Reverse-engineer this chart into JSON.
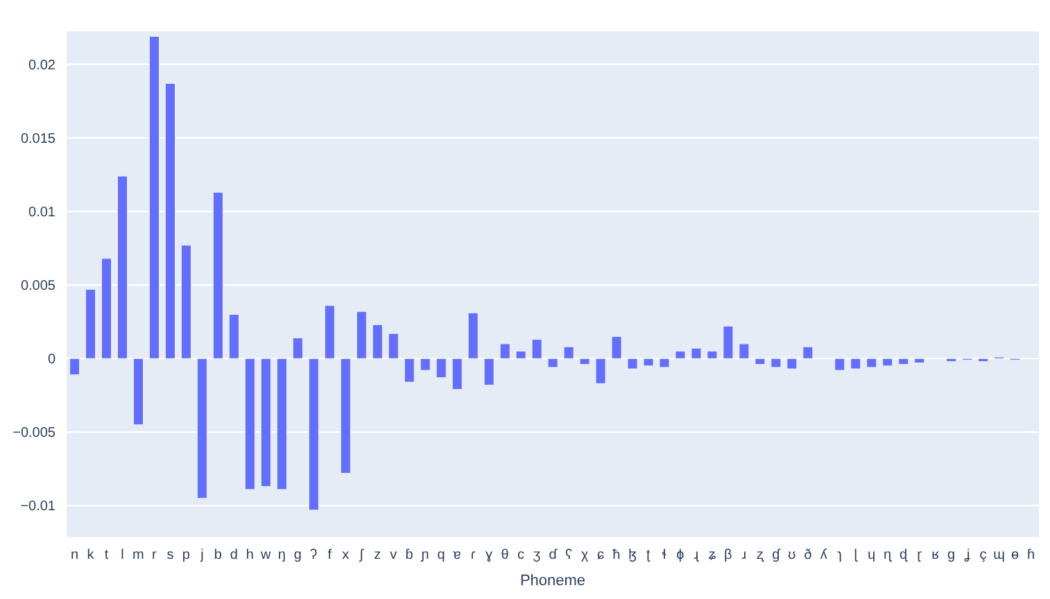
{
  "chart_data": {
    "type": "bar",
    "xlabel": "Phoneme",
    "categories": [
      "n",
      "k",
      "t",
      "l",
      "m",
      "r",
      "s",
      "p",
      "j",
      "b",
      "d",
      "h",
      "w",
      "ŋ",
      "g",
      "ʔ",
      "f",
      "x",
      "ʃ",
      "z",
      "v",
      "ɓ",
      "ɲ",
      "q",
      "ɐ",
      "ɾ",
      "ɣ",
      "θ",
      "c",
      "ʒ",
      "ɗ",
      "ʕ",
      "χ",
      "ɕ",
      "ħ",
      "ɮ",
      "ʈ",
      "ɬ",
      "ɸ",
      "ɻ",
      "ʑ",
      "β",
      "ɹ",
      "ʐ",
      "ɠ",
      "ʊ",
      "ð",
      "ʎ",
      "ɿ",
      "ɭ",
      "ɥ",
      "ɳ",
      "ɖ",
      "ɽ",
      "ʁ",
      "ɡ",
      "ʝ",
      "ç",
      "ɰ",
      "ɵ",
      "ɦ"
    ],
    "values": [
      -0.0011,
      0.0047,
      0.0068,
      0.0124,
      -0.0045,
      0.0219,
      0.0187,
      0.0077,
      -0.0095,
      0.0113,
      0.003,
      -0.0089,
      -0.0087,
      -0.0089,
      0.0014,
      -0.0103,
      0.0036,
      -0.0078,
      0.0032,
      0.0023,
      0.0017,
      -0.0016,
      -0.0008,
      -0.0013,
      -0.0021,
      0.0031,
      -0.0018,
      0.001,
      0.0005,
      0.0013,
      -0.0006,
      0.0008,
      -0.0004,
      -0.0017,
      0.0015,
      -0.0007,
      -0.0005,
      -0.0006,
      0.0005,
      0.0007,
      0.0005,
      0.0022,
      0.001,
      -0.0004,
      -0.0006,
      -0.0007,
      0.0008,
      0,
      -0.0008,
      -0.0007,
      -0.0006,
      -0.0005,
      -0.0004,
      -0.0003,
      0,
      -0.0002,
      -0.0001,
      -0.0002,
      0.0001,
      -0.0001,
      0
    ],
    "color": "#636efa",
    "ylim": [
      -0.0122,
      0.0223
    ],
    "yticks": [
      {
        "value": -0.01,
        "label": "−0.01"
      },
      {
        "value": -0.005,
        "label": "−0.005"
      },
      0,
      0.005,
      0.01,
      0.015,
      0.02
    ],
    "grid": "y"
  }
}
